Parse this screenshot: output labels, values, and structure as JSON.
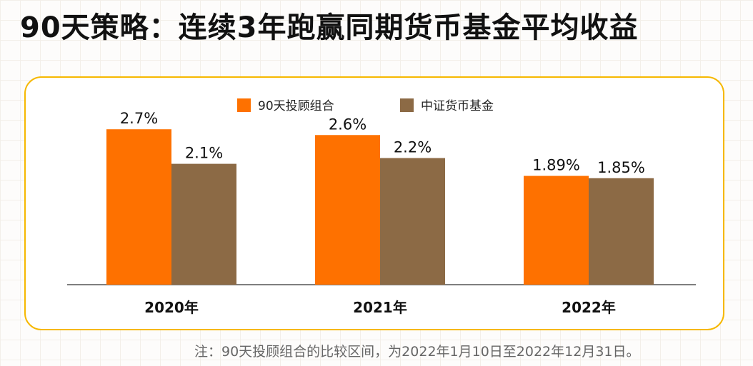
{
  "title": "90天策略：连续3年跑赢同期货币基金平均收益",
  "footnote": "注：90天投顾组合的比较区间，为2022年1月10日至2022年12月31日。",
  "colors": {
    "series_1": "#fe7100",
    "series_2": "#8c6a45",
    "card_border": "#f6b800"
  },
  "chart_data": {
    "type": "bar",
    "categories": [
      "2020年",
      "2021年",
      "2022年"
    ],
    "series": [
      {
        "name": "90天投顾组合",
        "values": [
          2.7,
          2.6,
          1.89
        ],
        "labels": [
          "2.7%",
          "2.6%",
          "1.89%"
        ],
        "color": "#fe7100"
      },
      {
        "name": "中证货币基金",
        "values": [
          2.1,
          2.2,
          1.85
        ],
        "labels": [
          "2.1%",
          "2.2%",
          "1.85%"
        ],
        "color": "#8c6a45"
      }
    ],
    "legend_position": "top-center",
    "grid": false,
    "show_y_axis": false,
    "ylim": [
      0,
      3.0
    ],
    "xlabel": "",
    "ylabel": ""
  }
}
